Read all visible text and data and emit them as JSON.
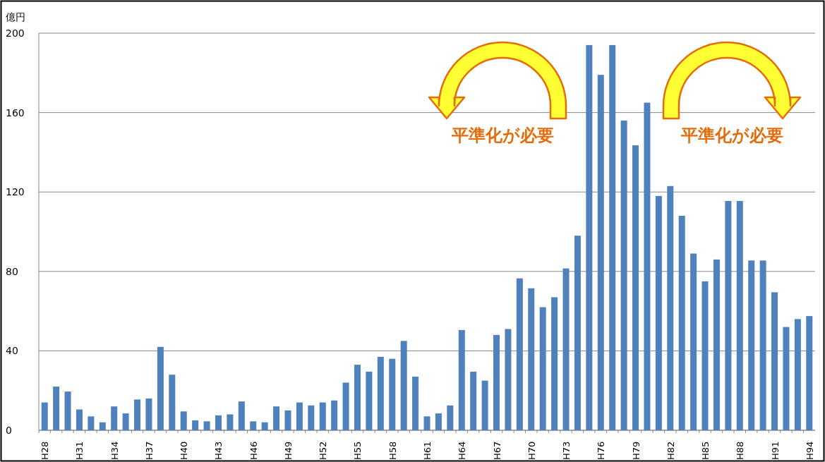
{
  "chart_data": {
    "type": "bar",
    "ylabel": "億円",
    "categories": [
      "H28",
      null,
      null,
      "H31",
      null,
      null,
      "H34",
      null,
      null,
      "H37",
      null,
      null,
      "H40",
      null,
      null,
      "H43",
      null,
      null,
      "H46",
      null,
      null,
      "H49",
      null,
      null,
      "H52",
      null,
      null,
      "H55",
      null,
      null,
      "H58",
      null,
      null,
      "H61",
      null,
      null,
      "H64",
      null,
      null,
      "H67",
      null,
      null,
      "H70",
      null,
      null,
      "H73",
      null,
      null,
      "H76",
      null,
      null,
      "H79",
      null,
      null,
      "H82",
      null,
      null,
      "H85",
      null,
      null,
      "H88",
      null,
      null,
      "H91",
      null,
      null,
      "H94"
    ],
    "values": [
      14,
      22,
      19.5,
      10.5,
      7,
      4,
      12,
      8.5,
      15.5,
      16,
      42,
      28,
      9.5,
      5,
      4.5,
      7.5,
      8,
      14.5,
      4.5,
      4,
      12,
      10,
      14,
      12.5,
      14,
      15,
      24,
      33,
      29.5,
      37,
      36,
      45,
      27,
      7,
      8.5,
      12.5,
      50.5,
      29.5,
      25,
      48,
      51,
      76.5,
      71.5,
      62,
      67,
      81.5,
      98,
      194,
      179,
      194,
      156,
      143.5,
      165,
      118,
      123,
      108,
      89,
      75,
      86,
      115.5,
      115.5,
      85.5,
      85.5,
      69.5,
      52,
      56,
      57.5
    ],
    "color": "#4f81bd",
    "ylim": [
      0,
      200
    ],
    "yticks": [
      0,
      40,
      80,
      120,
      160,
      200
    ],
    "grid": "y",
    "annotations": [
      "平準化が必要",
      "平準化が必要"
    ]
  }
}
